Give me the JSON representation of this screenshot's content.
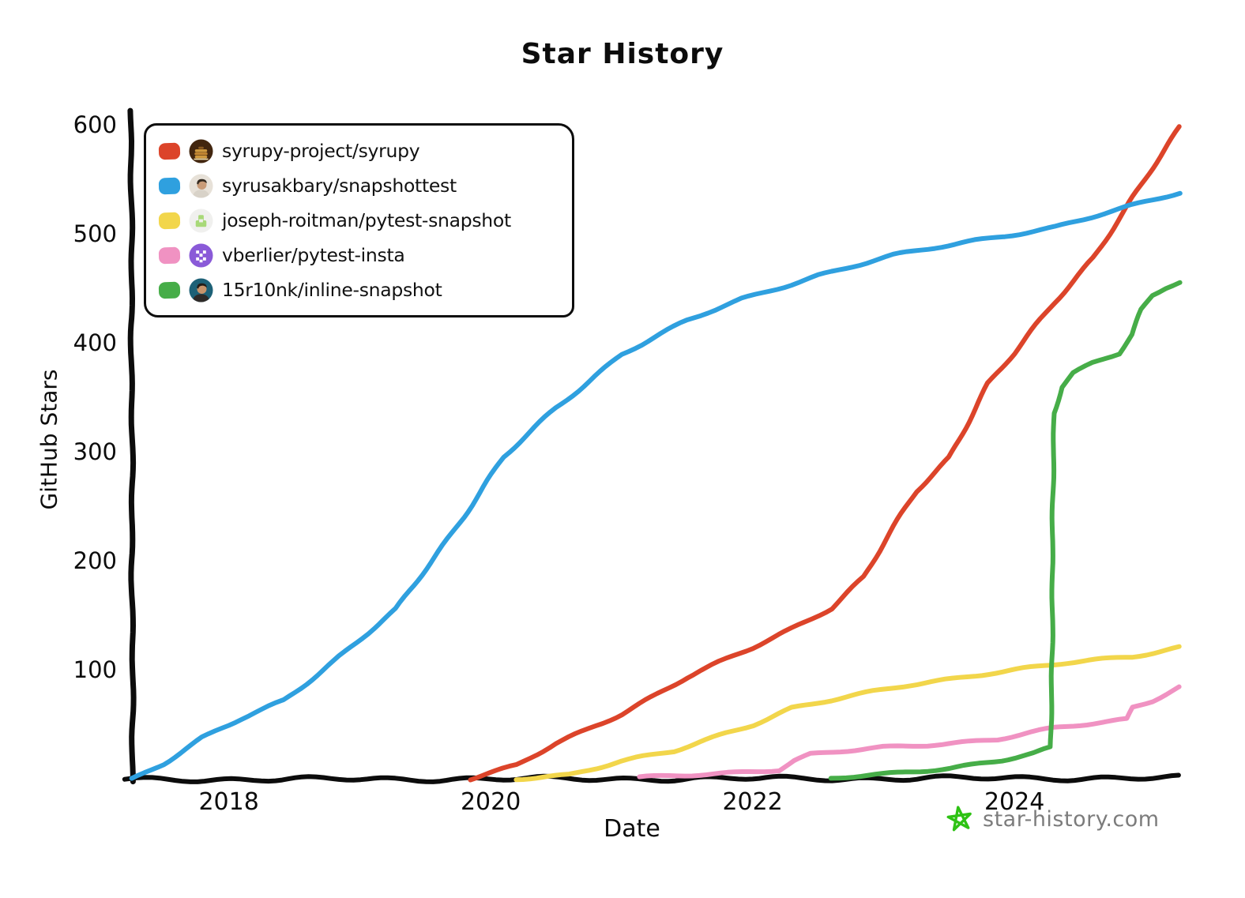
{
  "title": "Star History",
  "axes": {
    "x_label": "Date",
    "y_label": "GitHub Stars",
    "x_ticks": [
      2018,
      2020,
      2022,
      2024
    ],
    "x_tick_labels": [
      "2018",
      "2020",
      "2022",
      "2024"
    ],
    "y_ticks": [
      100,
      200,
      300,
      400,
      500,
      600
    ],
    "y_tick_labels": [
      "100",
      "200",
      "300",
      "400",
      "500",
      "600"
    ]
  },
  "footer": {
    "site": "star-history.com",
    "logo": "green-scribble-star-icon",
    "text_color": "#7c7c7c",
    "logo_color": "#2ec214"
  },
  "legend": {
    "items": [
      {
        "label": "syrupy-project/syrupy",
        "color": "#dc442a",
        "avatar": "pancakes"
      },
      {
        "label": "syrusakbary/snapshottest",
        "color": "#2fa0df",
        "avatar": "person-light"
      },
      {
        "label": "joseph-roitman/pytest-snapshot",
        "color": "#f2d64b",
        "avatar": "tray-green"
      },
      {
        "label": "vberlier/pytest-insta",
        "color": "#f092c2",
        "avatar": "pixel-purple"
      },
      {
        "label": "15r10nk/inline-snapshot",
        "color": "#46ad48",
        "avatar": "person-teal"
      }
    ]
  },
  "chart_data": {
    "type": "line",
    "title": "Star History",
    "xlabel": "Date",
    "ylabel": "GitHub Stars",
    "x_unit": "decimal_year",
    "xlim": [
      2017.26,
      2025.26
    ],
    "ylim": [
      0,
      610
    ],
    "grid": false,
    "legend_position": "top-left",
    "x_ticks": [
      2018,
      2020,
      2022,
      2024
    ],
    "y_ticks": [
      100,
      200,
      300,
      400,
      500,
      600
    ],
    "series": [
      {
        "name": "syrupy-project/syrupy",
        "color": "#dc442a",
        "points": [
          [
            2019.84,
            0
          ],
          [
            2020.2,
            12
          ],
          [
            2020.5,
            32
          ],
          [
            2021.0,
            60
          ],
          [
            2021.5,
            93
          ],
          [
            2022.0,
            120
          ],
          [
            2022.3,
            138
          ],
          [
            2022.6,
            157
          ],
          [
            2022.85,
            185
          ],
          [
            2023.0,
            215
          ],
          [
            2023.25,
            264
          ],
          [
            2023.5,
            295
          ],
          [
            2023.8,
            362
          ],
          [
            2024.0,
            390
          ],
          [
            2024.3,
            437
          ],
          [
            2024.6,
            478
          ],
          [
            2024.85,
            522
          ],
          [
            2025.0,
            550
          ],
          [
            2025.26,
            598
          ]
        ]
      },
      {
        "name": "syrusakbary/snapshottest",
        "color": "#2fa0df",
        "points": [
          [
            2017.26,
            0
          ],
          [
            2017.5,
            14
          ],
          [
            2017.8,
            37
          ],
          [
            2018.1,
            55
          ],
          [
            2018.42,
            72
          ],
          [
            2018.8,
            108
          ],
          [
            2019.28,
            155
          ],
          [
            2019.7,
            225
          ],
          [
            2020.1,
            295
          ],
          [
            2020.5,
            340
          ],
          [
            2021.0,
            390
          ],
          [
            2021.5,
            420
          ],
          [
            2021.92,
            440
          ],
          [
            2022.5,
            462
          ],
          [
            2023.08,
            480
          ],
          [
            2023.7,
            494
          ],
          [
            2024.31,
            506
          ],
          [
            2024.8,
            522
          ],
          [
            2025.26,
            538
          ]
        ]
      },
      {
        "name": "joseph-roitman/pytest-snapshot",
        "color": "#f2d64b",
        "points": [
          [
            2020.19,
            0
          ],
          [
            2020.6,
            4
          ],
          [
            2021.0,
            16
          ],
          [
            2021.4,
            25
          ],
          [
            2021.8,
            42
          ],
          [
            2022.0,
            50
          ],
          [
            2022.3,
            65
          ],
          [
            2022.6,
            72
          ],
          [
            2023.2,
            86
          ],
          [
            2023.8,
            97
          ],
          [
            2024.4,
            106
          ],
          [
            2024.9,
            112
          ],
          [
            2025.26,
            121
          ]
        ]
      },
      {
        "name": "vberlier/pytest-insta",
        "color": "#f092c2",
        "points": [
          [
            2021.14,
            1
          ],
          [
            2021.7,
            5
          ],
          [
            2022.2,
            8
          ],
          [
            2022.32,
            16
          ],
          [
            2022.45,
            22
          ],
          [
            2023.0,
            29
          ],
          [
            2023.55,
            33
          ],
          [
            2023.87,
            36
          ],
          [
            2024.3,
            46
          ],
          [
            2024.6,
            51
          ],
          [
            2024.86,
            55
          ],
          [
            2024.9,
            66
          ],
          [
            2025.05,
            72
          ],
          [
            2025.26,
            84
          ]
        ]
      },
      {
        "name": "15r10nk/inline-snapshot",
        "color": "#46ad48",
        "points": [
          [
            2022.6,
            0
          ],
          [
            2023.0,
            4
          ],
          [
            2023.5,
            10
          ],
          [
            2023.9,
            17
          ],
          [
            2024.15,
            23
          ],
          [
            2024.28,
            28
          ],
          [
            2024.3,
            336
          ],
          [
            2024.36,
            360
          ],
          [
            2024.45,
            372
          ],
          [
            2024.6,
            381
          ],
          [
            2024.8,
            390
          ],
          [
            2024.9,
            407
          ],
          [
            2024.97,
            430
          ],
          [
            2025.05,
            444
          ],
          [
            2025.15,
            451
          ],
          [
            2025.26,
            456
          ]
        ]
      }
    ]
  }
}
